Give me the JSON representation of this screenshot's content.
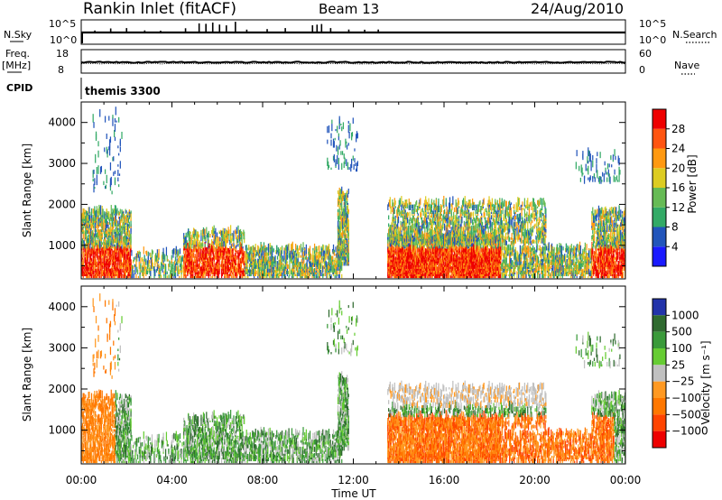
{
  "header": {
    "station": "Rankin Inlet (fitACF)",
    "beam": "Beam 13",
    "date": "24/Aug/2010"
  },
  "strip_panels": {
    "nsky": {
      "left_label": "N.Sky",
      "left_ticks": [
        "10^5",
        "10^0"
      ],
      "right_label": "N.Search",
      "right_ticks": [
        "10^5",
        "10^0"
      ]
    },
    "freq": {
      "left_label_top": "Freq.",
      "left_label_bottom": "[MHz]",
      "left_ticks": [
        "18",
        "8"
      ],
      "right_label": "Nave",
      "right_ticks": [
        "60",
        "0"
      ]
    },
    "cpid": {
      "label": "CPID",
      "value": "themis 3300"
    }
  },
  "chart_data": [
    {
      "type": "heatmap",
      "quantity": "power",
      "ylabel": "Slant Range [km]",
      "xlabel": "Time UT",
      "x_ticks": [
        "00:00",
        "04:00",
        "08:00",
        "12:00",
        "16:00",
        "20:00",
        "00:00"
      ],
      "x_range_hours": [
        0,
        24
      ],
      "y_ticks": [
        "1000",
        "2000",
        "3000",
        "4000"
      ],
      "y_range_km": [
        180,
        4500
      ],
      "colorbar": {
        "label": "Power [dB]",
        "tick_labels": [
          "4",
          "8",
          "12",
          "16",
          "20",
          "24",
          "28"
        ],
        "range": [
          0,
          30
        ],
        "colors": [
          "#1a1aff",
          "#2255bb",
          "#33aa66",
          "#66bb55",
          "#ddcc22",
          "#ff9911",
          "#ff5511",
          "#ee0000"
        ]
      }
    },
    {
      "type": "heatmap",
      "quantity": "velocity",
      "ylabel": "Slant Range [km]",
      "xlabel": "Time UT",
      "x_ticks": [
        "00:00",
        "04:00",
        "08:00",
        "12:00",
        "16:00",
        "20:00",
        "00:00"
      ],
      "x_range_hours": [
        0,
        24
      ],
      "y_ticks": [
        "1000",
        "2000",
        "3000",
        "4000"
      ],
      "y_range_km": [
        180,
        4500
      ],
      "colorbar": {
        "label": "Velocity [m s⁻¹]",
        "tick_labels": [
          "1000",
          "500",
          "100",
          "25",
          "−25",
          "−100",
          "−500",
          "−1000"
        ],
        "colors": [
          "#2233aa",
          "#2f6a2f",
          "#3a9a3a",
          "#66cc33",
          "#c0c0c0",
          "#ff9922",
          "#ff7700",
          "#ff4400",
          "#ee0000"
        ]
      }
    }
  ],
  "axis_title_x": "Time UT",
  "colors": {
    "panel_border": "#000000",
    "background": "#ffffff"
  }
}
